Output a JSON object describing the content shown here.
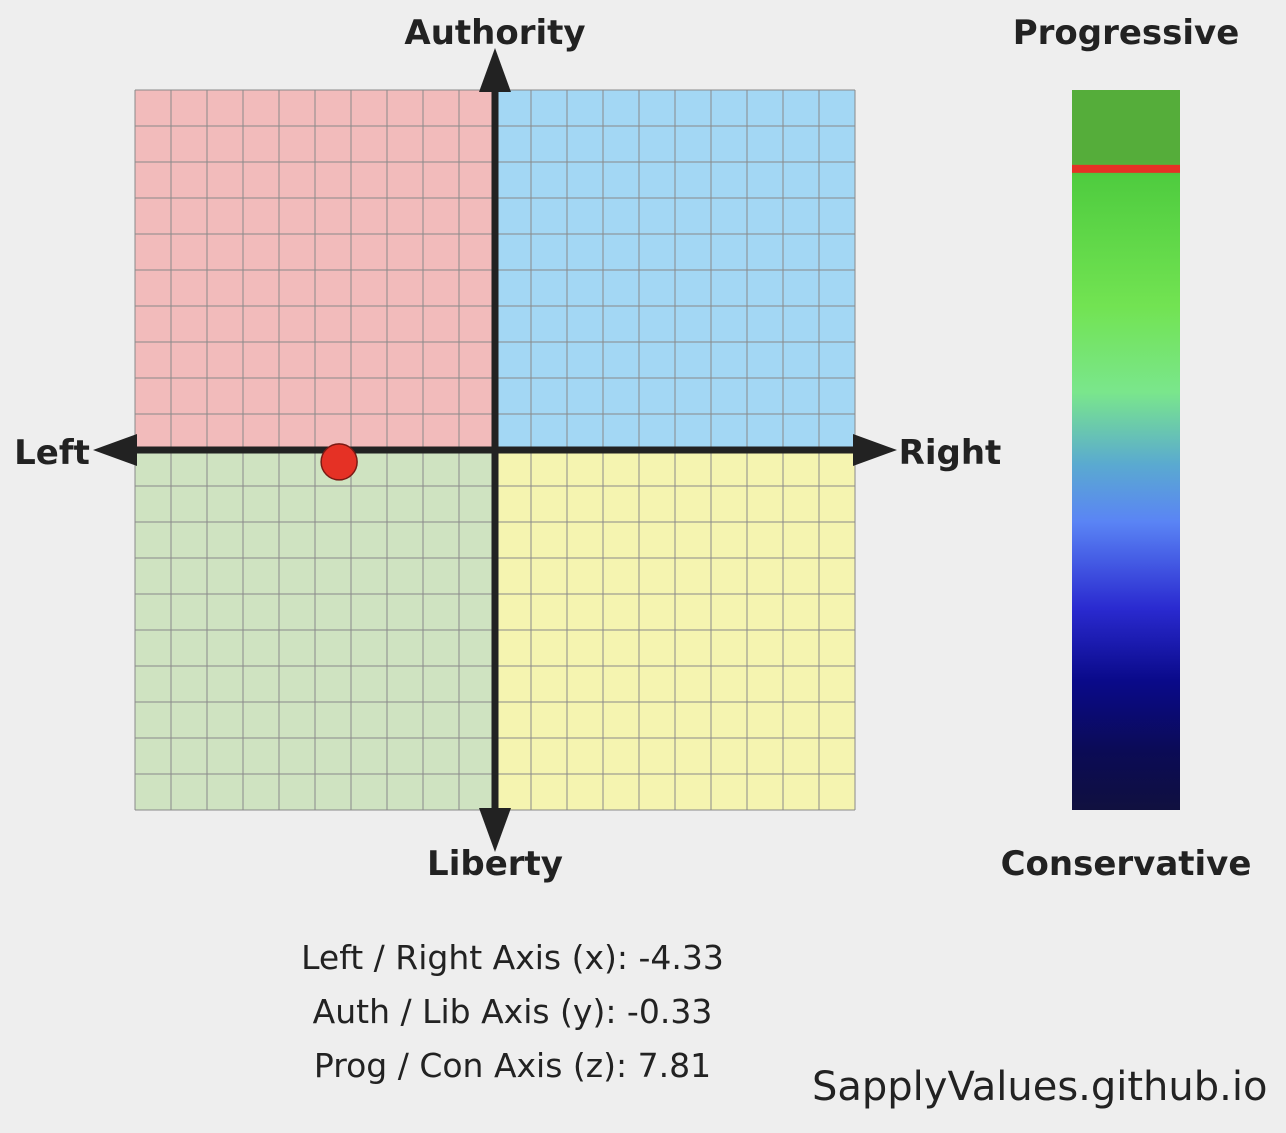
{
  "chart_data": {
    "type": "scatter",
    "title": "",
    "xlabel_left": "Left",
    "xlabel_right": "Right",
    "ylabel_top": "Authority",
    "ylabel_bottom": "Liberty",
    "xlim": [
      -10,
      10
    ],
    "ylim": [
      -10,
      10
    ],
    "grid": true,
    "quadrant_colors": {
      "auth_left": "#f2bbbb",
      "auth_right": "#a3d7f4",
      "lib_left": "#cfe3c1",
      "lib_right": "#f5f4b0"
    },
    "point": {
      "x": -4.33,
      "y": -0.33,
      "color": "#e53125"
    },
    "z_scale": {
      "top_label": "Progressive",
      "bottom_label": "Conservative",
      "range": [
        -10,
        10
      ],
      "value": 7.81,
      "marker_color": "#e53125"
    }
  },
  "readouts": {
    "x": "Left / Right Axis (x): -4.33",
    "y": "Auth / Lib Axis (y): -0.33",
    "z": "Prog / Con Axis (z): 7.81"
  },
  "watermark": "SapplyValues.github.io"
}
